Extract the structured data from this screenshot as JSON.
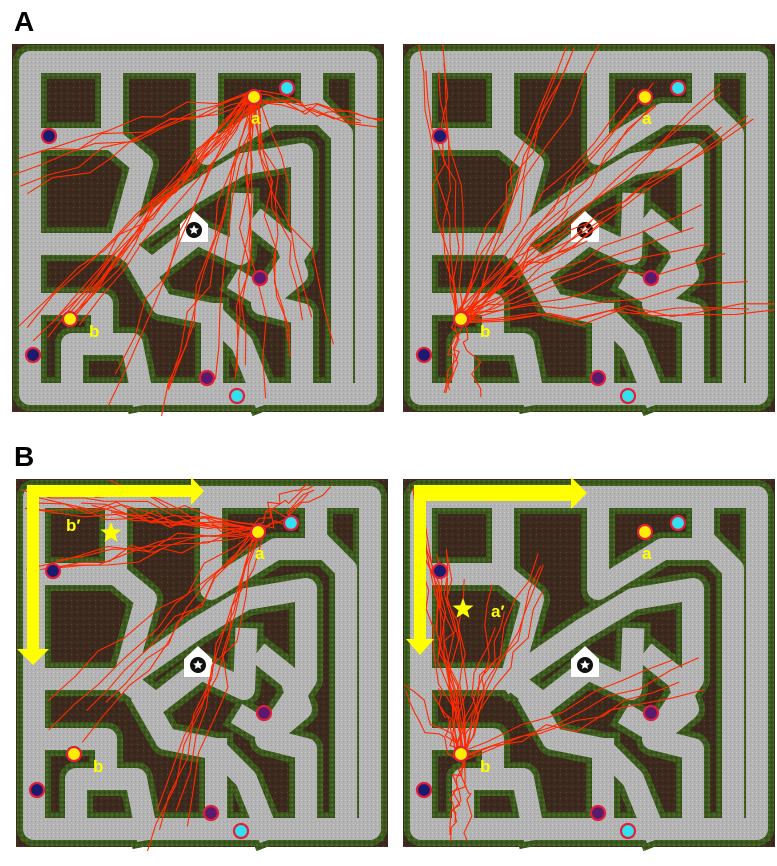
{
  "figure": {
    "panel_labels": [
      "A",
      "B"
    ],
    "maps": [
      {
        "panel": "A",
        "start": "a",
        "goal": "b",
        "trajectory_count": 36,
        "labels": [
          "a",
          "b"
        ],
        "arrow": "none",
        "star_label": ""
      },
      {
        "panel": "A",
        "start": "b",
        "goal": "a",
        "trajectory_count": 36,
        "labels": [
          "a",
          "b"
        ],
        "arrow": "none",
        "star_label": ""
      },
      {
        "panel": "B",
        "start": "a",
        "goal": "b'",
        "trajectory_count": 30,
        "labels": [
          "a",
          "b"
        ],
        "arrow": "left-down",
        "star_label": "b′"
      },
      {
        "panel": "B",
        "start": "b",
        "goal": "a'",
        "trajectory_count": 30,
        "labels": [
          "a",
          "b"
        ],
        "arrow": "up-right",
        "star_label": "a′"
      }
    ],
    "colors": {
      "corridor": "#b4b4b4",
      "hedge": "#3d5a1e",
      "soil": "#3b2a1d",
      "trajectory": "#ff2a00",
      "arrow": "#ffff00",
      "marker_yellow": "#ffee00",
      "marker_cyan": "#33e0f0",
      "marker_navy": "#1a1a6e",
      "marker_purple": "#5a1a6e",
      "marker_ring": "#e0203a"
    },
    "icons": [
      "home-base-icon",
      "goal-star-icon"
    ]
  }
}
